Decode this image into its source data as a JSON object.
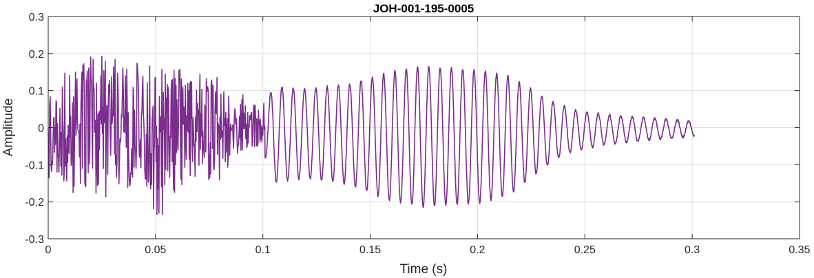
{
  "chart_data": {
    "type": "line",
    "title": "JOH-001-195-0005",
    "xlabel": "Time (s)",
    "ylabel": "Amplitude",
    "xlim": [
      0,
      0.35
    ],
    "ylim": [
      -0.3,
      0.3
    ],
    "grid": true,
    "line_color": "#7B2D8E",
    "x_ticks": [
      0,
      0.05,
      0.1,
      0.15,
      0.2,
      0.25,
      0.3,
      0.35
    ],
    "x_tick_labels": [
      "0",
      "0.05",
      "0.1",
      "0.15",
      "0.2",
      "0.25",
      "0.3",
      "0.35"
    ],
    "y_ticks": [
      -0.3,
      -0.2,
      -0.1,
      0,
      0.1,
      0.2,
      0.3
    ],
    "y_tick_labels": [
      "-0.3",
      "-0.2",
      "-0.1",
      "0",
      "0.1",
      "0.2",
      "0.3"
    ],
    "series": [
      {
        "segments": [
          {
            "kind": "noise",
            "x_start": 0,
            "x_end": 0.101,
            "frequency_hz": 2200,
            "envelope": [
              [
                0,
                0.14
              ],
              [
                0.003,
                0.12
              ],
              [
                0.01,
                0.17
              ],
              [
                0.019,
                0.2
              ],
              [
                0.028,
                0.21
              ],
              [
                0.035,
                0.16
              ],
              [
                0.045,
                0.17
              ],
              [
                0.055,
                0.18
              ],
              [
                0.065,
                0.15
              ],
              [
                0.075,
                0.14
              ],
              [
                0.085,
                0.08
              ],
              [
                0.095,
                0.06
              ],
              [
                0.1,
                0.07
              ]
            ]
          },
          {
            "kind": "tone",
            "x_start": 0.101,
            "x_end": 0.301,
            "frequency_hz": 190,
            "offset": -0.025,
            "envelope": [
              [
                0.101,
                0.07
              ],
              [
                0.105,
                0.13
              ],
              [
                0.12,
                0.12
              ],
              [
                0.14,
                0.135
              ],
              [
                0.16,
                0.175
              ],
              [
                0.175,
                0.19
              ],
              [
                0.185,
                0.185
              ],
              [
                0.2,
                0.18
              ],
              [
                0.215,
                0.16
              ],
              [
                0.225,
                0.12
              ],
              [
                0.235,
                0.08
              ],
              [
                0.245,
                0.055
              ],
              [
                0.26,
                0.04
              ],
              [
                0.28,
                0.03
              ],
              [
                0.301,
                0.02
              ]
            ]
          }
        ]
      }
    ]
  }
}
